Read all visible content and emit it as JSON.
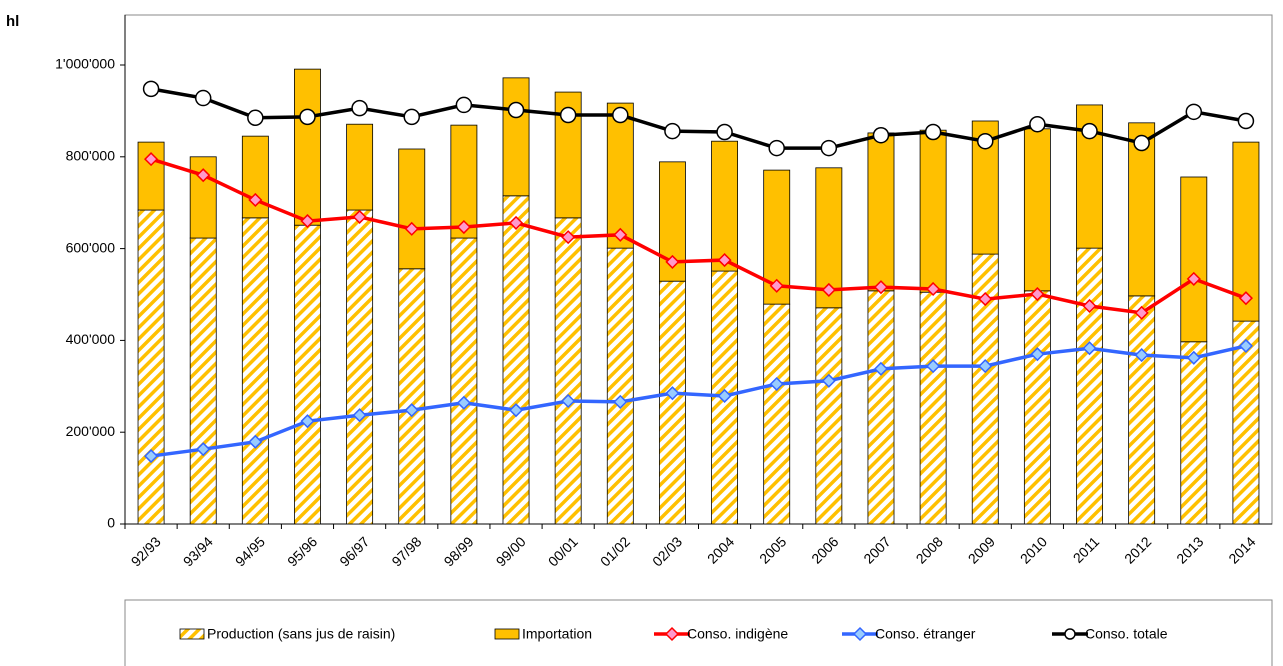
{
  "chart_data": {
    "type": "bar",
    "y_label": "hl",
    "categories": [
      "92/93",
      "93/94",
      "94/95",
      "95/96",
      "96/97",
      "97/98",
      "98/99",
      "99/00",
      "00/01",
      "01/02",
      "02/03",
      "2004",
      "2005",
      "2006",
      "2007",
      "2008",
      "2009",
      "2010",
      "2011",
      "2012",
      "2013",
      "2014"
    ],
    "ylim": [
      0,
      1000000
    ],
    "yticks": [
      0,
      {
        "value": 200000,
        "label": "200'000"
      },
      {
        "value": 400000,
        "label": "400'000"
      },
      {
        "value": 600000,
        "label": "600'000"
      },
      {
        "value": 800000,
        "label": "800'000"
      },
      {
        "value": 1000000,
        "label": "1'000'000"
      }
    ],
    "grid": false,
    "series": [
      {
        "name": "Production (sans jus de raisin)",
        "type": "bar",
        "pattern": "hatch",
        "color": "#ffc000",
        "values": [
          684000,
          623000,
          667000,
          651000,
          684000,
          556000,
          623000,
          715000,
          667000,
          601000,
          529000,
          551000,
          479000,
          471000,
          508000,
          505000,
          588000,
          508000,
          601000,
          497000,
          397000,
          442000
        ]
      },
      {
        "name": "Importation",
        "type": "bar",
        "color": "#ffc000",
        "values": [
          148000,
          177000,
          178000,
          340000,
          187000,
          261000,
          246000,
          257000,
          274000,
          316000,
          260000,
          283000,
          292000,
          305000,
          344000,
          353000,
          290000,
          353000,
          312000,
          377000,
          359000,
          390000
        ]
      },
      {
        "name": "Conso. indigène",
        "type": "line",
        "marker": "diamond",
        "color": "#ff0000",
        "marker_color": "#ff99cc",
        "values": [
          795000,
          760000,
          706000,
          660000,
          669000,
          643000,
          647000,
          656000,
          625000,
          630000,
          571000,
          575000,
          519000,
          510000,
          516000,
          512000,
          490000,
          501000,
          475000,
          460000,
          534000,
          492000
        ]
      },
      {
        "name": "Conso. étranger",
        "type": "line",
        "marker": "diamond",
        "color": "#3366ff",
        "marker_color": "#99ccff",
        "values": [
          148000,
          163000,
          179000,
          224000,
          237000,
          248000,
          264000,
          248000,
          268000,
          266000,
          285000,
          279000,
          305000,
          312000,
          338000,
          344000,
          344000,
          370000,
          383000,
          368000,
          362000,
          388000
        ]
      },
      {
        "name": "Conso. totale",
        "type": "line",
        "marker": "circle",
        "color": "#000000",
        "marker_color": "#ffffff",
        "values": [
          948000,
          928000,
          885000,
          887000,
          906000,
          887000,
          913000,
          902000,
          891000,
          891000,
          856000,
          854000,
          819000,
          819000,
          847000,
          854000,
          834000,
          871000,
          856000,
          830000,
          898000,
          878000
        ]
      }
    ]
  }
}
